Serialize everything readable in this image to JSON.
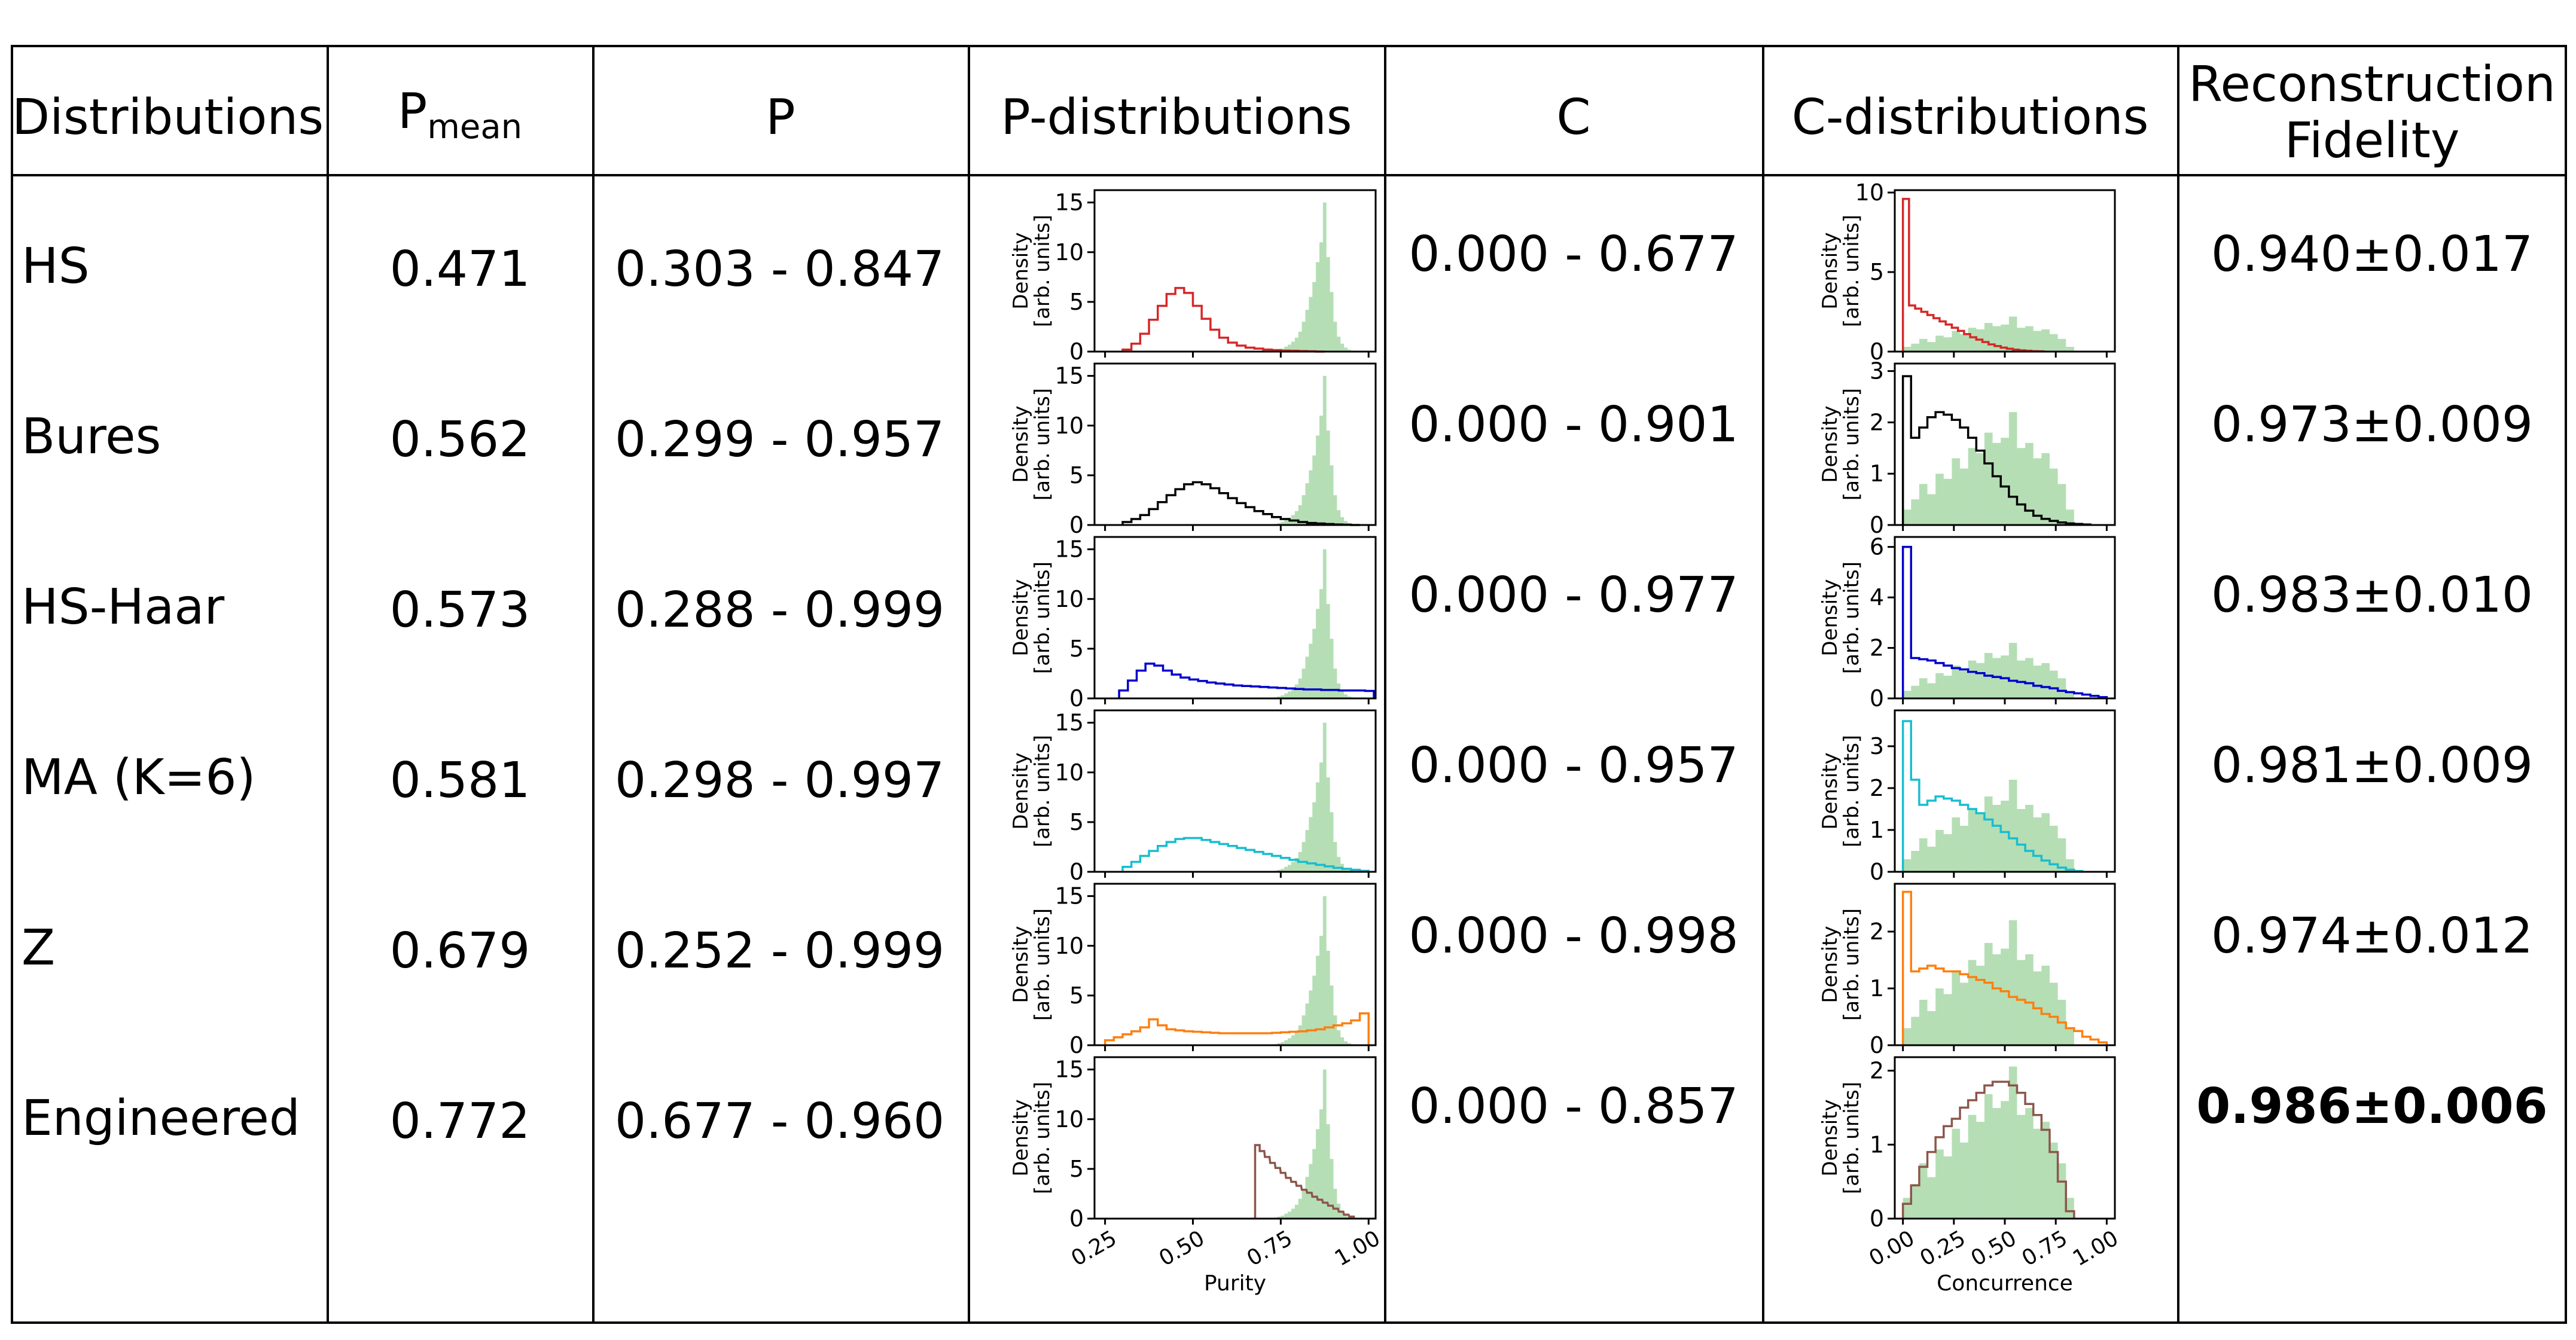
{
  "table": {
    "headers": {
      "distributions": "Distributions",
      "p_mean_main": "P",
      "p_mean_sub": "mean",
      "p": "P",
      "p_distributions": "P-distributions",
      "c": "C",
      "c_distributions": "C-distributions",
      "fidelity_line1": "Reconstruction",
      "fidelity_line2": "Fidelity"
    },
    "rows": [
      {
        "name": "HS",
        "p_mean": "0.471",
        "p_range": "0.303 - 0.847",
        "c_range": "0.000 - 0.677",
        "fidelity": "0.940±0.017",
        "bold": false
      },
      {
        "name": "Bures",
        "p_mean": "0.562",
        "p_range": "0.299 - 0.957",
        "c_range": "0.000 - 0.901",
        "fidelity": "0.973±0.009",
        "bold": false
      },
      {
        "name": "HS-Haar",
        "p_mean": "0.573",
        "p_range": "0.288 - 0.999",
        "c_range": "0.000 - 0.977",
        "fidelity": "0.983±0.010",
        "bold": false
      },
      {
        "name": "MA (K=6)",
        "p_mean": "0.581",
        "p_range": "0.298 - 0.997",
        "c_range": "0.000 - 0.957",
        "fidelity": "0.981±0.009",
        "bold": false
      },
      {
        "name": "Z",
        "p_mean": "0.679",
        "p_range": "0.252 - 0.999",
        "c_range": "0.000 - 0.998",
        "fidelity": "0.974±0.012",
        "bold": false
      },
      {
        "name": "Engineered",
        "p_mean": "0.772",
        "p_range": "0.677 - 0.960",
        "c_range": "0.000 - 0.857",
        "fidelity": "0.986±0.006",
        "bold": true
      }
    ]
  },
  "chart_data": [
    {
      "type": "histogram-panels",
      "column": "P-distributions",
      "xlabel": "Purity",
      "ylabel": "Density\n[arb. units]",
      "xlim": [
        0.22,
        1.02
      ],
      "xticks": [
        "0.25",
        "0.50",
        "0.75",
        "1.00"
      ],
      "xtick_values": [
        0.25,
        0.5,
        0.75,
        1.0
      ],
      "reference_series": {
        "name": "target (green fill)",
        "bins_x": [
          0.73,
          0.74,
          0.75,
          0.76,
          0.77,
          0.78,
          0.79,
          0.8,
          0.81,
          0.82,
          0.83,
          0.84,
          0.85,
          0.86,
          0.87,
          0.88,
          0.89,
          0.9,
          0.91,
          0.92,
          0.93,
          0.94,
          0.95
        ],
        "values": [
          0.1,
          0.2,
          0.3,
          0.5,
          0.7,
          1.0,
          1.4,
          2.0,
          3.0,
          4.2,
          5.5,
          7.0,
          9.0,
          11.0,
          15.0,
          9.5,
          6.0,
          3.0,
          1.5,
          0.8,
          0.4,
          0.2,
          0.1
        ]
      },
      "panels": [
        {
          "name": "HS",
          "color": "#d62728",
          "ylim": [
            0,
            16
          ],
          "yticks": [
            0,
            5,
            10,
            15
          ],
          "x": [
            0.3,
            0.325,
            0.35,
            0.375,
            0.4,
            0.425,
            0.45,
            0.475,
            0.5,
            0.525,
            0.55,
            0.575,
            0.6,
            0.625,
            0.65,
            0.675,
            0.7,
            0.725,
            0.75,
            0.775,
            0.8,
            0.825,
            0.85
          ],
          "values": [
            0.2,
            0.8,
            1.8,
            3.2,
            4.6,
            5.8,
            6.4,
            5.9,
            4.6,
            3.3,
            2.2,
            1.4,
            0.9,
            0.6,
            0.4,
            0.3,
            0.2,
            0.15,
            0.1,
            0.08,
            0.05,
            0.03,
            0
          ]
        },
        {
          "name": "Bures",
          "color": "#000000",
          "ylim": [
            0,
            16
          ],
          "yticks": [
            0,
            5,
            10,
            15
          ],
          "x": [
            0.3,
            0.325,
            0.35,
            0.375,
            0.4,
            0.425,
            0.45,
            0.475,
            0.5,
            0.525,
            0.55,
            0.575,
            0.6,
            0.625,
            0.65,
            0.675,
            0.7,
            0.725,
            0.75,
            0.775,
            0.8,
            0.825,
            0.85,
            0.875,
            0.9,
            0.925,
            0.95
          ],
          "values": [
            0.3,
            0.6,
            1.0,
            1.6,
            2.3,
            3.0,
            3.6,
            4.1,
            4.3,
            4.1,
            3.7,
            3.2,
            2.7,
            2.2,
            1.8,
            1.4,
            1.1,
            0.8,
            0.6,
            0.45,
            0.3,
            0.2,
            0.15,
            0.1,
            0.05,
            0.03,
            0
          ]
        },
        {
          "name": "HS-Haar",
          "color": "#0000cc",
          "ylim": [
            0,
            16
          ],
          "yticks": [
            0,
            5,
            10,
            15
          ],
          "x": [
            0.29,
            0.315,
            0.34,
            0.365,
            0.39,
            0.415,
            0.44,
            0.465,
            0.49,
            0.515,
            0.54,
            0.565,
            0.59,
            0.615,
            0.64,
            0.665,
            0.69,
            0.715,
            0.74,
            0.765,
            0.79,
            0.815,
            0.84,
            0.865,
            0.89,
            0.915,
            0.94,
            0.965,
            0.99
          ],
          "values": [
            0.8,
            1.8,
            2.8,
            3.5,
            3.3,
            2.8,
            2.4,
            2.1,
            1.9,
            1.75,
            1.6,
            1.5,
            1.4,
            1.3,
            1.25,
            1.2,
            1.15,
            1.1,
            1.05,
            1.0,
            0.95,
            0.9,
            0.9,
            0.85,
            0.85,
            0.8,
            0.8,
            0.8,
            0.75
          ]
        },
        {
          "name": "MA (K=6)",
          "color": "#17becf",
          "ylim": [
            0,
            16
          ],
          "yticks": [
            0,
            5,
            10,
            15
          ],
          "x": [
            0.3,
            0.325,
            0.35,
            0.375,
            0.4,
            0.425,
            0.45,
            0.475,
            0.5,
            0.525,
            0.55,
            0.575,
            0.6,
            0.625,
            0.65,
            0.675,
            0.7,
            0.725,
            0.75,
            0.775,
            0.8,
            0.825,
            0.85,
            0.875,
            0.9,
            0.925,
            0.95,
            0.975
          ],
          "values": [
            0.5,
            1.0,
            1.6,
            2.1,
            2.6,
            3.0,
            3.3,
            3.4,
            3.4,
            3.2,
            3.0,
            2.8,
            2.6,
            2.4,
            2.2,
            2.0,
            1.8,
            1.6,
            1.4,
            1.2,
            1.0,
            0.85,
            0.7,
            0.55,
            0.4,
            0.3,
            0.2,
            0.1
          ]
        },
        {
          "name": "Z",
          "color": "#ff7f0e",
          "ylim": [
            0,
            16
          ],
          "yticks": [
            0,
            5,
            10,
            15
          ],
          "x": [
            0.25,
            0.275,
            0.3,
            0.325,
            0.35,
            0.375,
            0.4,
            0.425,
            0.45,
            0.475,
            0.5,
            0.525,
            0.55,
            0.575,
            0.6,
            0.625,
            0.65,
            0.675,
            0.7,
            0.725,
            0.75,
            0.775,
            0.8,
            0.825,
            0.85,
            0.875,
            0.9,
            0.925,
            0.95,
            0.975
          ],
          "values": [
            0.5,
            0.8,
            1.1,
            1.4,
            1.8,
            2.6,
            2.0,
            1.6,
            1.5,
            1.4,
            1.35,
            1.3,
            1.25,
            1.2,
            1.2,
            1.2,
            1.2,
            1.2,
            1.2,
            1.25,
            1.3,
            1.35,
            1.4,
            1.5,
            1.6,
            1.8,
            2.0,
            2.2,
            2.5,
            3.2
          ]
        },
        {
          "name": "Engineered",
          "color": "#8c564b",
          "ylim": [
            0,
            16
          ],
          "yticks": [
            0,
            5,
            10,
            15
          ],
          "x": [
            0.677,
            0.69,
            0.705,
            0.72,
            0.735,
            0.75,
            0.765,
            0.78,
            0.795,
            0.81,
            0.825,
            0.84,
            0.855,
            0.87,
            0.885,
            0.9,
            0.915,
            0.93,
            0.945
          ],
          "values": [
            7.4,
            6.8,
            6.2,
            5.6,
            5.1,
            4.6,
            4.1,
            3.7,
            3.3,
            2.9,
            2.6,
            2.2,
            1.9,
            1.6,
            1.3,
            1.0,
            0.7,
            0.4,
            0.2
          ]
        }
      ]
    },
    {
      "type": "histogram-panels",
      "column": "C-distributions",
      "xlabel": "Concurrence",
      "ylabel": "Density\n[arb. units]",
      "xlim": [
        -0.04,
        1.04
      ],
      "xticks": [
        "0.00",
        "0.25",
        "0.50",
        "0.75",
        "1.00"
      ],
      "xtick_values": [
        0.0,
        0.25,
        0.5,
        0.75,
        1.0
      ],
      "reference_series": {
        "name": "target (green fill)",
        "bins_x": [
          0.0,
          0.04,
          0.08,
          0.12,
          0.16,
          0.2,
          0.24,
          0.28,
          0.32,
          0.36,
          0.4,
          0.44,
          0.48,
          0.52,
          0.56,
          0.6,
          0.64,
          0.68,
          0.72,
          0.76,
          0.8
        ],
        "values": [
          0.3,
          0.5,
          0.8,
          0.6,
          1.0,
          0.9,
          1.3,
          1.1,
          1.5,
          1.4,
          1.8,
          1.6,
          1.7,
          2.2,
          1.5,
          1.6,
          1.3,
          1.4,
          1.1,
          0.8,
          0.3
        ]
      },
      "panels": [
        {
          "name": "HS",
          "color": "#d62728",
          "ylim": [
            0,
            10
          ],
          "yticks": [
            0,
            5,
            10
          ],
          "x": [
            0.0,
            0.03,
            0.06,
            0.09,
            0.12,
            0.15,
            0.18,
            0.21,
            0.24,
            0.27,
            0.3,
            0.33,
            0.36,
            0.39,
            0.42,
            0.45,
            0.48,
            0.51,
            0.54,
            0.57,
            0.6,
            0.63,
            0.66
          ],
          "values": [
            9.6,
            2.9,
            2.7,
            2.5,
            2.3,
            2.1,
            1.9,
            1.7,
            1.5,
            1.3,
            1.1,
            0.9,
            0.75,
            0.6,
            0.45,
            0.35,
            0.25,
            0.18,
            0.12,
            0.08,
            0.05,
            0.03,
            0.02
          ]
        },
        {
          "name": "Bures",
          "color": "#000000",
          "ylim": [
            0,
            3.1
          ],
          "yticks": [
            0,
            1,
            2,
            3
          ],
          "x": [
            0.0,
            0.04,
            0.08,
            0.12,
            0.16,
            0.2,
            0.24,
            0.28,
            0.32,
            0.36,
            0.4,
            0.44,
            0.48,
            0.52,
            0.56,
            0.6,
            0.64,
            0.68,
            0.72,
            0.76,
            0.8,
            0.84,
            0.88
          ],
          "values": [
            2.9,
            1.7,
            1.9,
            2.1,
            2.2,
            2.15,
            2.05,
            1.9,
            1.7,
            1.45,
            1.2,
            0.95,
            0.75,
            0.55,
            0.4,
            0.28,
            0.18,
            0.12,
            0.08,
            0.05,
            0.03,
            0.02,
            0.01
          ]
        },
        {
          "name": "HS-Haar",
          "color": "#0000cc",
          "ylim": [
            0,
            6.3
          ],
          "yticks": [
            0,
            2,
            4,
            6
          ],
          "x": [
            0.0,
            0.04,
            0.08,
            0.12,
            0.16,
            0.2,
            0.24,
            0.28,
            0.32,
            0.36,
            0.4,
            0.44,
            0.48,
            0.52,
            0.56,
            0.6,
            0.64,
            0.68,
            0.72,
            0.76,
            0.8,
            0.84,
            0.88,
            0.92,
            0.96
          ],
          "values": [
            6.0,
            1.6,
            1.55,
            1.5,
            1.4,
            1.3,
            1.2,
            1.15,
            1.05,
            1.0,
            0.9,
            0.85,
            0.8,
            0.7,
            0.65,
            0.6,
            0.5,
            0.45,
            0.4,
            0.3,
            0.25,
            0.2,
            0.15,
            0.1,
            0.05
          ]
        },
        {
          "name": "MA (K=6)",
          "color": "#17becf",
          "ylim": [
            0,
            3.8
          ],
          "yticks": [
            0,
            1,
            2,
            3
          ],
          "x": [
            0.0,
            0.04,
            0.08,
            0.12,
            0.16,
            0.2,
            0.24,
            0.28,
            0.32,
            0.36,
            0.4,
            0.44,
            0.48,
            0.52,
            0.56,
            0.6,
            0.64,
            0.68,
            0.72,
            0.76,
            0.8,
            0.84
          ],
          "values": [
            3.6,
            2.2,
            1.6,
            1.7,
            1.8,
            1.75,
            1.7,
            1.6,
            1.5,
            1.4,
            1.25,
            1.1,
            0.95,
            0.8,
            0.65,
            0.5,
            0.38,
            0.27,
            0.18,
            0.1,
            0.05,
            0.02
          ]
        },
        {
          "name": "Z",
          "color": "#ff7f0e",
          "ylim": [
            0,
            2.8
          ],
          "yticks": [
            0,
            1,
            2
          ],
          "x": [
            0.0,
            0.04,
            0.08,
            0.12,
            0.16,
            0.2,
            0.24,
            0.28,
            0.32,
            0.36,
            0.4,
            0.44,
            0.48,
            0.52,
            0.56,
            0.6,
            0.64,
            0.68,
            0.72,
            0.76,
            0.8,
            0.84,
            0.88,
            0.92,
            0.96
          ],
          "values": [
            2.7,
            1.3,
            1.35,
            1.4,
            1.35,
            1.3,
            1.3,
            1.25,
            1.2,
            1.15,
            1.1,
            1.0,
            0.95,
            0.85,
            0.8,
            0.75,
            0.65,
            0.55,
            0.5,
            0.4,
            0.3,
            0.25,
            0.15,
            0.1,
            0.05
          ]
        },
        {
          "name": "Engineered",
          "color": "#8c564b",
          "ylim": [
            0,
            2.15
          ],
          "yticks": [
            0,
            1,
            2
          ],
          "x": [
            0.0,
            0.04,
            0.08,
            0.12,
            0.16,
            0.2,
            0.24,
            0.28,
            0.32,
            0.36,
            0.4,
            0.44,
            0.48,
            0.52,
            0.56,
            0.6,
            0.64,
            0.68,
            0.72,
            0.76,
            0.8
          ],
          "values": [
            0.2,
            0.45,
            0.7,
            0.9,
            1.1,
            1.25,
            1.35,
            1.5,
            1.6,
            1.7,
            1.8,
            1.85,
            1.85,
            1.8,
            1.7,
            1.55,
            1.4,
            1.2,
            0.9,
            0.5,
            0.1
          ]
        }
      ]
    }
  ]
}
